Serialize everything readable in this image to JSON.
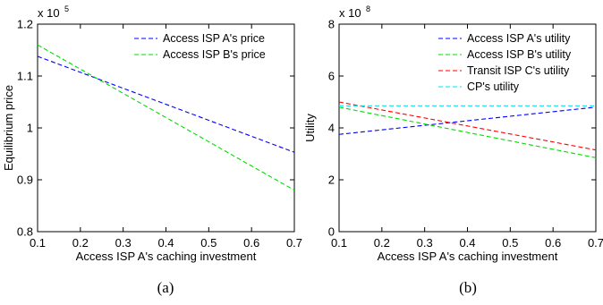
{
  "chart_data": [
    {
      "type": "line",
      "caption": "(a)",
      "xlabel": "Access ISP A's caching investment",
      "ylabel": "Equilibrium price",
      "y_multiplier": "x 10",
      "y_exponent": "5",
      "xlim": [
        0.1,
        0.7
      ],
      "ylim": [
        0.8,
        1.2
      ],
      "xticks": [
        0.1,
        0.2,
        0.3,
        0.4,
        0.5,
        0.6,
        0.7
      ],
      "yticks": [
        0.8,
        0.9,
        1.0,
        1.1,
        1.2
      ],
      "xtick_labels": [
        "0.1",
        "0.2",
        "0.3",
        "0.4",
        "0.5",
        "0.6",
        "0.7"
      ],
      "ytick_labels": [
        "0.8",
        "0.9",
        "1",
        "1.1",
        "1.2"
      ],
      "legend_position": "top-right",
      "grid": false,
      "series": [
        {
          "name": "Access ISP A's price",
          "color": "#0000ff",
          "x": [
            0.1,
            0.7
          ],
          "y": [
            1.138,
            0.953
          ]
        },
        {
          "name": "Access ISP B's price",
          "color": "#00dd00",
          "x": [
            0.1,
            0.7
          ],
          "y": [
            1.16,
            0.88
          ]
        }
      ]
    },
    {
      "type": "line",
      "caption": "(b)",
      "xlabel": "Access ISP A's caching investment",
      "ylabel": "Utility",
      "y_multiplier": "x 10",
      "y_exponent": "8",
      "xlim": [
        0.1,
        0.7
      ],
      "ylim": [
        0,
        8
      ],
      "xticks": [
        0.1,
        0.2,
        0.3,
        0.4,
        0.5,
        0.6,
        0.7
      ],
      "yticks": [
        0,
        2,
        4,
        6,
        8
      ],
      "xtick_labels": [
        "0.1",
        "0.2",
        "0.3",
        "0.4",
        "0.5",
        "0.6",
        "0.7"
      ],
      "ytick_labels": [
        "0",
        "2",
        "4",
        "6",
        "8"
      ],
      "legend_position": "top-right",
      "grid": false,
      "series": [
        {
          "name": "Access ISP A's utility",
          "color": "#0000ff",
          "x": [
            0.1,
            0.7
          ],
          "y": [
            3.75,
            4.8
          ]
        },
        {
          "name": "Access ISP B's utility",
          "color": "#00dd00",
          "x": [
            0.1,
            0.7
          ],
          "y": [
            4.8,
            2.85
          ]
        },
        {
          "name": "Transit ISP C's utility",
          "color": "#ff0000",
          "x": [
            0.1,
            0.7
          ],
          "y": [
            5.0,
            3.15
          ]
        },
        {
          "name": "CP's utility",
          "color": "#00e5ee",
          "x": [
            0.1,
            0.7
          ],
          "y": [
            4.85,
            4.85
          ]
        }
      ]
    }
  ]
}
